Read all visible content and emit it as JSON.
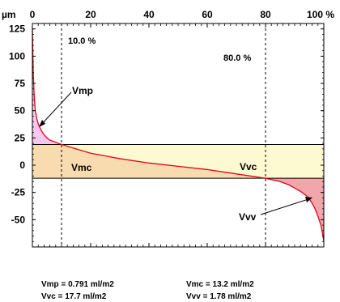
{
  "chart_data": {
    "type": "area",
    "title": "",
    "xlabel": "%",
    "ylabel": "µm",
    "x_unit": "%",
    "y_unit": "µm",
    "xlim": [
      0,
      100
    ],
    "ylim": [
      -75,
      130
    ],
    "x_ticks": [
      0,
      20,
      40,
      60,
      80,
      100
    ],
    "x_tick_labels": [
      "0",
      "20",
      "40",
      "60",
      "80",
      "100 %"
    ],
    "y_ticks": [
      125,
      100,
      75,
      50,
      25,
      0,
      -25,
      -50
    ],
    "y_tick_labels": [
      "125",
      "100",
      "75",
      "50",
      "25",
      "0",
      "-25",
      "-50"
    ],
    "y_unit_label": "µm",
    "grid": false,
    "series": [
      {
        "x": [
          0,
          0.3,
          0.6,
          1,
          1.5,
          2,
          3,
          4,
          5,
          6,
          7,
          8,
          9,
          10,
          15,
          20,
          30,
          40,
          50,
          60,
          70,
          80,
          85,
          88,
          90,
          92,
          94,
          95,
          96,
          97,
          98,
          99,
          99.5,
          100
        ],
        "y": [
          125,
          85,
          65,
          50,
          43,
          38,
          32,
          28,
          25,
          23,
          22,
          21,
          20,
          19,
          15,
          11,
          6,
          2,
          -1,
          -4,
          -8,
          -12,
          -15,
          -18,
          -21,
          -24,
          -28,
          -31,
          -35,
          -40,
          -47,
          -55,
          -62,
          -70
        ]
      }
    ],
    "vertical_markers": [
      {
        "x": 10,
        "label": "10.0 %"
      },
      {
        "x": 80,
        "label": "80.0 %"
      }
    ],
    "levels": {
      "upper": 19,
      "lower": -12
    },
    "regions": [
      {
        "name": "Vmp",
        "label": "Vmp",
        "color": "#f6c8ee"
      },
      {
        "name": "Vmc",
        "label": "Vmc",
        "color": "#f8dcb0"
      },
      {
        "name": "Vvc",
        "label": "Vvc",
        "color": "#fdf9d0"
      },
      {
        "name": "Vvv",
        "label": "Vvv",
        "color": "#f0a6aa"
      }
    ],
    "curve_color": "#e8001c"
  },
  "results": {
    "vmp": "Vmp = 0.791 ml/m2",
    "vmc": "Vmc = 13.2 ml/m2",
    "vvc": "Vvc = 17.7 ml/m2",
    "vvv": "Vvv = 1.78 ml/m2"
  }
}
